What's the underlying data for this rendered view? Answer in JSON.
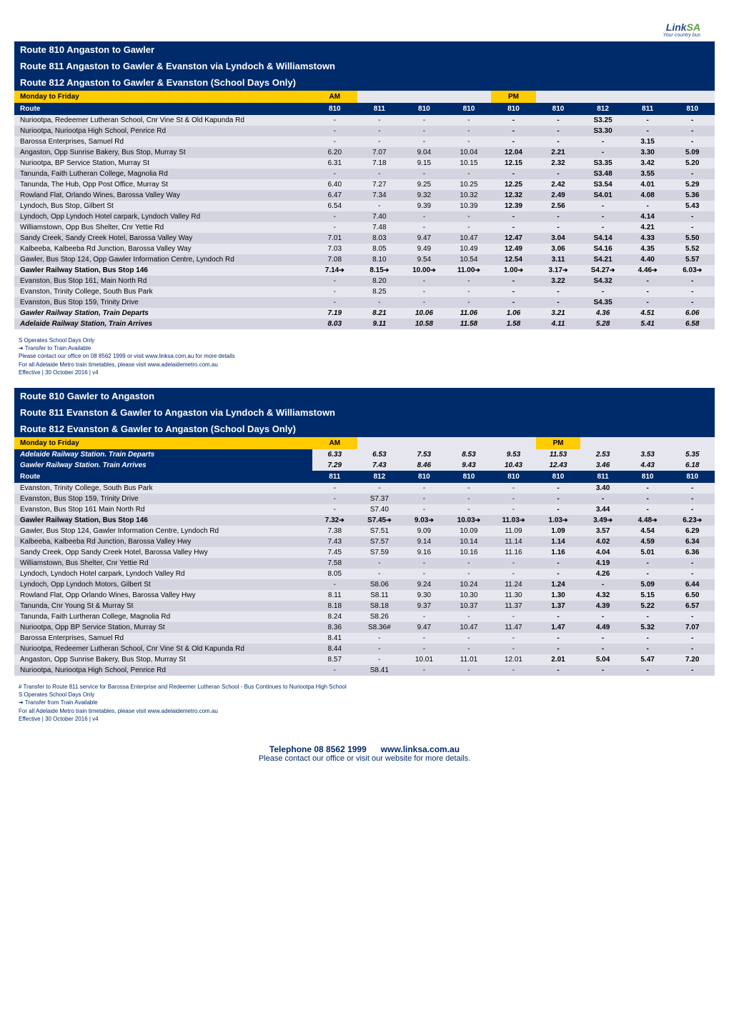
{
  "logo": {
    "brand_pre": "Link",
    "brand_suf": "SA",
    "tagline": "Your country bus"
  },
  "block1": {
    "headers": [
      "Route 810 Angaston to Gawler",
      "Route 811 Angaston to Gawler & Evanston via Lyndoch & Williamstown",
      "Route 812 Angaston to Gawler & Evanston (School Days Only)"
    ],
    "day_label": "Monday to Friday",
    "am_label": "AM",
    "pm_label": "PM",
    "route_label": "Route",
    "route_nums": [
      "810",
      "811",
      "810",
      "810",
      "810",
      "810",
      "812",
      "811",
      "810"
    ],
    "am_cols": [
      0
    ],
    "pm_cols": [
      4
    ],
    "rows": [
      {
        "stop": "Nuriootpa, Redeemer Lutheran School, Cnr Vine St & Old Kapunda Rd",
        "t": [
          "-",
          "-",
          "-",
          "-",
          "-",
          "-",
          "S3.25",
          "-",
          "-"
        ]
      },
      {
        "stop": "Nuriootpa, Nuriootpa High School, Penrice Rd",
        "t": [
          "-",
          "-",
          "-",
          "-",
          "-",
          "-",
          "S3.30",
          "-",
          "-"
        ]
      },
      {
        "stop": "Barossa Enterprises, Samuel Rd",
        "t": [
          "-",
          "-",
          "-",
          "-",
          "-",
          "-",
          "-",
          "3.15",
          "-"
        ]
      },
      {
        "stop": "Angaston, Opp Sunrise Bakery, Bus Stop, Murray St",
        "t": [
          "6.20",
          "7.07",
          "9.04",
          "10.04",
          "12.04",
          "2.21",
          "-",
          "3.30",
          "5.09"
        ]
      },
      {
        "stop": "Nuriootpa, BP Service Station, Murray St",
        "t": [
          "6.31",
          "7.18",
          "9.15",
          "10.15",
          "12.15",
          "2.32",
          "S3.35",
          "3.42",
          "5.20"
        ]
      },
      {
        "stop": "Tanunda, Faith Lutheran College, Magnolia Rd",
        "t": [
          "-",
          "-",
          "-",
          "-",
          "-",
          "-",
          "S3.48",
          "3.55",
          "-"
        ]
      },
      {
        "stop": "Tanunda, The Hub, Opp Post Office, Murray St",
        "t": [
          "6.40",
          "7.27",
          "9.25",
          "10.25",
          "12.25",
          "2.42",
          "S3.54",
          "4.01",
          "5.29"
        ]
      },
      {
        "stop": "Rowland Flat, Orlando Wines, Barossa Valley Way",
        "t": [
          "6.47",
          "7.34",
          "9.32",
          "10.32",
          "12.32",
          "2.49",
          "S4.01",
          "4.08",
          "5.36"
        ]
      },
      {
        "stop": "Lyndoch, Bus Stop, Gilbert St",
        "t": [
          "6.54",
          "-",
          "9.39",
          "10.39",
          "12.39",
          "2.56",
          "-",
          "-",
          "5.43"
        ]
      },
      {
        "stop": "Lyndoch, Opp Lyndoch Hotel carpark, Lyndoch Valley Rd",
        "t": [
          "-",
          "7.40",
          "-",
          "-",
          "-",
          "-",
          "-",
          "4.14",
          "-"
        ]
      },
      {
        "stop": "Williamstown, Opp Bus Shelter, Cnr Yettie Rd",
        "t": [
          "-",
          "7.48",
          "-",
          "-",
          "-",
          "-",
          "-",
          "4.21",
          "-"
        ]
      },
      {
        "stop": "Sandy Creek, Sandy Creek Hotel, Barossa Valley Way",
        "t": [
          "7.01",
          "8.03",
          "9.47",
          "10.47",
          "12.47",
          "3.04",
          "S4.14",
          "4.33",
          "5.50"
        ]
      },
      {
        "stop": "Kalbeeba, Kalbeeba Rd Junction, Barossa Valley Way",
        "t": [
          "7.03",
          "8.05",
          "9.49",
          "10.49",
          "12.49",
          "3.06",
          "S4.16",
          "4.35",
          "5.52"
        ]
      },
      {
        "stop": "Gawler, Bus Stop 124,  Opp Gawler Information Centre, Lyndoch Rd",
        "t": [
          "7.08",
          "8.10",
          "9.54",
          "10.54",
          "12.54",
          "3.11",
          "S4.21",
          "4.40",
          "5.57"
        ]
      },
      {
        "stop": "Gawler Railway Station, Bus Stop 146",
        "bold": true,
        "arrows": [
          0,
          1,
          2,
          3,
          4,
          5,
          6,
          7,
          8
        ],
        "t": [
          "7.14",
          "8.15",
          "10.00",
          "11.00",
          "1.00",
          "3.17",
          "S4.27",
          "4.46",
          "6.03"
        ]
      },
      {
        "stop": "Evanston, Bus Stop 161, Main North Rd",
        "t": [
          "-",
          "8.20",
          "-",
          "-",
          "-",
          "3.22",
          "S4.32",
          "-",
          "-"
        ]
      },
      {
        "stop": "Evanston, Trinity College, South Bus Park",
        "t": [
          "-",
          "8.25",
          "-",
          "-",
          "-",
          "-",
          "-",
          "-",
          "-"
        ]
      },
      {
        "stop": "Evanston, Bus Stop 159, Trinity Drive",
        "t": [
          "-",
          "-",
          "-",
          "-",
          "-",
          "-",
          "S4.35",
          "-",
          "-"
        ]
      },
      {
        "stop": "Gawler Railway Station, Train Departs",
        "italic": true,
        "t": [
          "7.19",
          "8.21",
          "10.06",
          "11.06",
          "1.06",
          "3.21",
          "4.36",
          "4.51",
          "6.06"
        ]
      },
      {
        "stop": "Adelaide Railway Station, Train Arrives",
        "italic": true,
        "t": [
          "8.03",
          "9.11",
          "10.58",
          "11.58",
          "1.58",
          "4.11",
          "5.28",
          "5.41",
          "6.58"
        ]
      }
    ],
    "notes": [
      "S Operates School Days Only",
      "➔ Transfer to Train Available",
      "   Please contact our office on 08 8562 1999 or visit www.linksa.com.au for more details",
      "   For all Adelaide Metro train timetables, please visit www.adelaidemetro.com.au",
      "   Effective | 30 October 2016 | v4"
    ]
  },
  "block2": {
    "headers": [
      "Route 810 Gawler to Angaston",
      "Route 811 Evanston & Gawler to Angaston via Lyndoch & Williamstown",
      "Route 812 Evanston & Gawler to Angaston (School Days Only)"
    ],
    "day_label": "Monday to Friday",
    "am_label": "AM",
    "pm_label": "PM",
    "sub1": {
      "label": "Adelaide Railway Station. Train Departs",
      "t": [
        "6.33",
        "6.53",
        "7.53",
        "8.53",
        "9.53",
        "11.53",
        "2.53",
        "3.53",
        "5.35"
      ]
    },
    "sub2": {
      "label": "Gawler Railway Station. Train Arrives",
      "t": [
        "7.29",
        "7.43",
        "8.46",
        "9.43",
        "10.43",
        "12.43",
        "3.46",
        "4.43",
        "6.18"
      ]
    },
    "route_label": "Route",
    "route_nums": [
      "811",
      "812",
      "810",
      "810",
      "810",
      "810",
      "811",
      "810",
      "810"
    ],
    "am_cols": [
      0
    ],
    "pm_cols": [
      5
    ],
    "rows": [
      {
        "stop": "Evanston, Trinity College, South Bus Park",
        "t": [
          "-",
          "-",
          "-",
          "-",
          "-",
          "-",
          "3.40",
          "-",
          "-"
        ]
      },
      {
        "stop": "Evanston, Bus Stop 159, Trinity Drive",
        "t": [
          "-",
          "S7.37",
          "-",
          "-",
          "-",
          "-",
          "-",
          "-",
          "-"
        ]
      },
      {
        "stop": "Evanston, Bus Stop 161 Main North Rd",
        "t": [
          "-",
          "S7.40",
          "-",
          "-",
          "-",
          "-",
          "3.44",
          "-",
          "-"
        ]
      },
      {
        "stop": "Gawler Railway Station, Bus Stop 146",
        "bold": true,
        "arrows": [
          0,
          1,
          2,
          3,
          4,
          5,
          6,
          7,
          8
        ],
        "t": [
          "7.32",
          "S7.45",
          "9.03",
          "10.03",
          "11.03",
          "1.03",
          "3.49",
          "4.48",
          "6.23"
        ]
      },
      {
        "stop": "Gawler, Bus Stop 124, Gawler Information Centre, Lyndoch Rd",
        "t": [
          "7.38",
          "S7.51",
          "9.09",
          "10.09",
          "11.09",
          "1.09",
          "3.57",
          "4.54",
          "6.29"
        ]
      },
      {
        "stop": "Kalbeeba, Kalbeeba Rd Junction, Barossa Valley Hwy",
        "t": [
          "7.43",
          "S7.57",
          "9.14",
          "10.14",
          "11.14",
          "1.14",
          "4.02",
          "4.59",
          "6.34"
        ]
      },
      {
        "stop": "Sandy Creek, Opp Sandy Creek Hotel, Barossa Valley Hwy",
        "t": [
          "7.45",
          "S7.59",
          "9.16",
          "10.16",
          "11.16",
          "1.16",
          "4.04",
          "5.01",
          "6.36"
        ]
      },
      {
        "stop": "Williamstown, Bus Shelter, Cnr Yettie Rd",
        "t": [
          "7.58",
          "-",
          "-",
          "-",
          "-",
          "-",
          "4.19",
          "-",
          "-"
        ]
      },
      {
        "stop": "Lyndoch, Lyndoch Hotel carpark, Lyndoch Valley Rd",
        "t": [
          "8.05",
          "-",
          "-",
          "-",
          "-",
          "-",
          "4.26",
          "-",
          "-"
        ]
      },
      {
        "stop": "Lyndoch, Opp Lyndoch Motors, Gilbert St",
        "t": [
          "-",
          "S8.06",
          "9.24",
          "10.24",
          "11.24",
          "1.24",
          "-",
          "5.09",
          "6.44"
        ]
      },
      {
        "stop": "Rowland Flat, Opp Orlando Wines, Barossa Valley Hwy",
        "t": [
          "8.11",
          "S8.11",
          "9.30",
          "10.30",
          "11.30",
          "1.30",
          "4.32",
          "5.15",
          "6.50"
        ]
      },
      {
        "stop": "Tanunda, Cnr Young St & Murray St",
        "t": [
          "8.18",
          "S8.18",
          "9.37",
          "10.37",
          "11.37",
          "1.37",
          "4.39",
          "5.22",
          "6.57"
        ]
      },
      {
        "stop": "Tanunda, Faith Lurtheran College, Magnolia Rd",
        "t": [
          "8.24",
          "S8.26",
          "-",
          "-",
          "-",
          "-",
          "-",
          "-",
          "-"
        ]
      },
      {
        "stop": "Nuriootpa, Opp BP Service Station, Murray St",
        "t": [
          "8.36",
          "S8.36#",
          "9.47",
          "10.47",
          "11.47",
          "1.47",
          "4.49",
          "5.32",
          "7.07"
        ]
      },
      {
        "stop": "Barossa Enterprises, Samuel Rd",
        "t": [
          "8.41",
          "-",
          "-",
          "-",
          "-",
          "-",
          "-",
          "-",
          "-"
        ]
      },
      {
        "stop": "Nuriootpa, Redeemer Lutheran School, Cnr Vine St & Old Kapunda Rd",
        "t": [
          "8.44",
          "-",
          "-",
          "-",
          "-",
          "-",
          "-",
          "-",
          "-"
        ]
      },
      {
        "stop": "Angaston, Opp Sunrise Bakery, Bus Stop, Murray St",
        "t": [
          "8.57",
          "-",
          "10.01",
          "11.01",
          "12.01",
          "2.01",
          "5.04",
          "5.47",
          "7.20"
        ]
      },
      {
        "stop": "Nuriootpa, Nuriootpa High School, Penrice Rd",
        "t": [
          "-",
          "S8.41",
          "-",
          "-",
          "-",
          "-",
          "-",
          "-",
          "-"
        ]
      }
    ],
    "notes": [
      "# Transfer to Route 811 service for Barossa Enterprise and Redeemer Lutheran School - Bus Continues to Nuriootpa High School",
      "S Operates School Days Only",
      "   ➔ Transfer from Train Available",
      "For all Adelaide Metro train timetables, please visit www.adelaidemetro.com.au",
      "Effective | 30 October 2016 | v4"
    ]
  },
  "footer": {
    "line1a": "Telephone 08 8562 1999",
    "line1b": "www.linksa.com.au",
    "line2": "Please contact our office or visit our website for more details."
  },
  "colors": {
    "navy": "#002b6b",
    "yellow": "#ffcc00",
    "row_odd": "#e6e6ee",
    "row_even": "#d4d4e0"
  }
}
